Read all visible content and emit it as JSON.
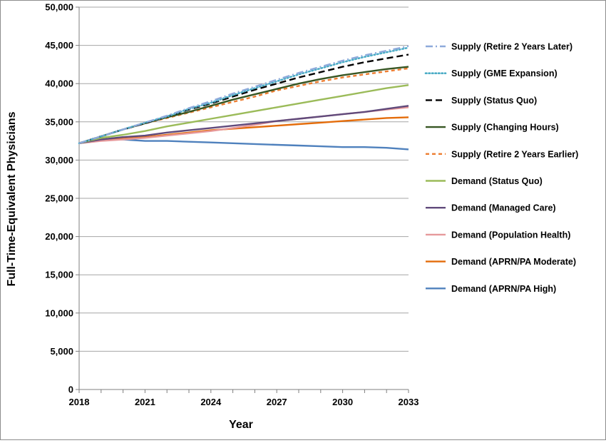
{
  "chart_data": {
    "type": "line",
    "xlabel": "Year",
    "ylabel": "Full-Time-Equivalent Physicians",
    "xlim": [
      2018,
      2033
    ],
    "ylim": [
      0,
      50000
    ],
    "x_ticks": [
      2018,
      2021,
      2024,
      2027,
      2030,
      2033
    ],
    "x_tick_labels": [
      "2018",
      "2021",
      "2024",
      "2027",
      "2030",
      "2033"
    ],
    "y_ticks": [
      0,
      5000,
      10000,
      15000,
      20000,
      25000,
      30000,
      35000,
      40000,
      45000,
      50000
    ],
    "y_tick_labels": [
      "0",
      "5,000",
      "10,000",
      "15,000",
      "20,000",
      "25,000",
      "30,000",
      "35,000",
      "40,000",
      "45,000",
      "50,000"
    ],
    "grid": "horizontal",
    "legend_position": "right",
    "x": [
      2018,
      2019,
      2020,
      2021,
      2022,
      2023,
      2024,
      2025,
      2026,
      2027,
      2028,
      2029,
      2030,
      2031,
      2032,
      2033
    ],
    "series": [
      {
        "name": "Supply (Retire 2 Years Later)",
        "color": "#8eaadb",
        "dash": "dashdot",
        "values": [
          32200,
          33100,
          34000,
          34900,
          35800,
          36800,
          37700,
          38700,
          39600,
          40500,
          41400,
          42200,
          43000,
          43700,
          44300,
          44900
        ]
      },
      {
        "name": "Supply (GME Expansion)",
        "color": "#4bacc6",
        "dash": "dotted",
        "values": [
          32200,
          33100,
          34000,
          34900,
          35700,
          36700,
          37500,
          38500,
          39400,
          40300,
          41200,
          42000,
          42800,
          43500,
          44100,
          44700
        ]
      },
      {
        "name": "Supply (Status Quo)",
        "color": "#000000",
        "dash": "dashed",
        "values": [
          32200,
          33100,
          34000,
          34800,
          35700,
          36600,
          37400,
          38300,
          39200,
          40000,
          40800,
          41500,
          42200,
          42800,
          43300,
          43800
        ]
      },
      {
        "name": "Supply (Changing Hours)",
        "color": "#375623",
        "dash": "solid",
        "values": [
          32200,
          33100,
          34000,
          34800,
          35600,
          36300,
          37100,
          37900,
          38600,
          39300,
          40000,
          40600,
          41100,
          41500,
          41900,
          42200
        ]
      },
      {
        "name": "Supply (Retire 2 Years Earlier)",
        "color": "#ed7d31",
        "dash": "shortdash",
        "values": [
          32200,
          33100,
          34000,
          34800,
          35500,
          36200,
          36900,
          37600,
          38300,
          39100,
          39700,
          40300,
          40800,
          41200,
          41600,
          42000
        ]
      },
      {
        "name": "Demand (Status Quo)",
        "color": "#9bbb59",
        "dash": "solid",
        "values": [
          32200,
          32900,
          33300,
          33800,
          34400,
          34900,
          35400,
          35900,
          36400,
          36900,
          37400,
          37900,
          38400,
          38900,
          39400,
          39800
        ]
      },
      {
        "name": "Demand (Managed Care)",
        "color": "#604a7b",
        "dash": "solid",
        "values": [
          32200,
          32700,
          33000,
          33200,
          33600,
          33900,
          34200,
          34500,
          34800,
          35100,
          35400,
          35700,
          36000,
          36300,
          36700,
          37100
        ]
      },
      {
        "name": "Demand (Population Health)",
        "color": "#e6999b",
        "dash": "solid",
        "values": [
          32200,
          32500,
          32700,
          32900,
          33200,
          33500,
          33800,
          34200,
          34600,
          35100,
          35400,
          35700,
          36000,
          36300,
          36600,
          36900
        ]
      },
      {
        "name": "Demand (APRN/PA Moderate)",
        "color": "#e46c0a",
        "dash": "solid",
        "values": [
          32200,
          32600,
          32800,
          33000,
          33300,
          33600,
          33900,
          34100,
          34300,
          34500,
          34700,
          34900,
          35100,
          35300,
          35500,
          35600
        ]
      },
      {
        "name": "Demand (APRN/PA High)",
        "color": "#4f81bd",
        "dash": "solid",
        "values": [
          32200,
          32700,
          32700,
          32500,
          32500,
          32400,
          32300,
          32200,
          32100,
          32000,
          31900,
          31800,
          31700,
          31700,
          31600,
          31400
        ]
      }
    ]
  }
}
